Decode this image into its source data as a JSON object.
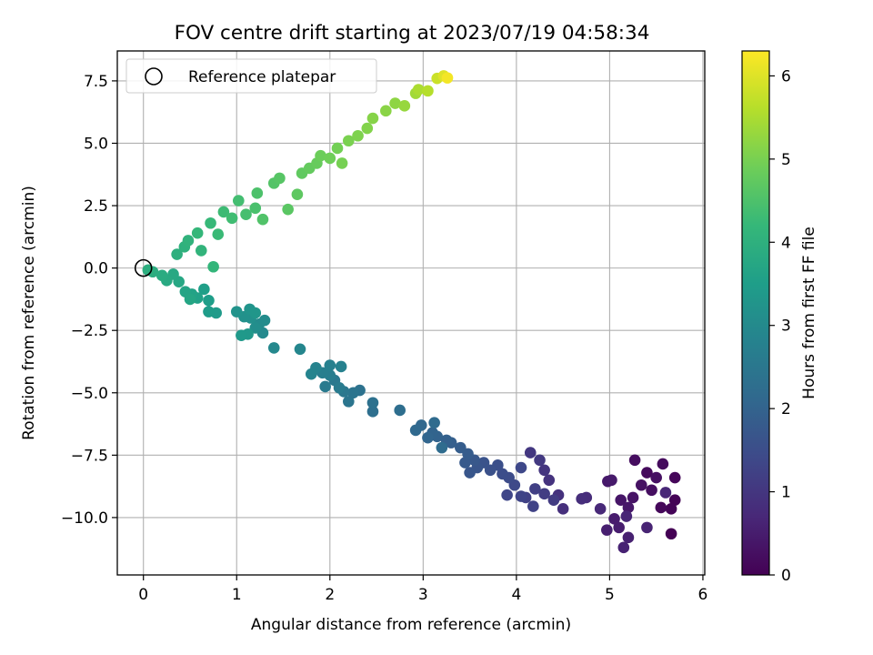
{
  "chart_data": {
    "type": "scatter",
    "title": "FOV centre drift starting at 2023/07/19 04:58:34",
    "xlabel": "Angular distance from reference (arcmin)",
    "ylabel": "Rotation from reference (arcmin)",
    "xlim": [
      -0.28,
      6.02
    ],
    "ylim": [
      -12.3,
      8.7
    ],
    "xticks": [
      0,
      1,
      2,
      3,
      4,
      5,
      6
    ],
    "yticks": [
      -10.0,
      -7.5,
      -5.0,
      -2.5,
      0.0,
      2.5,
      5.0,
      7.5
    ],
    "xtick_labels": [
      "0",
      "1",
      "2",
      "3",
      "4",
      "5",
      "6"
    ],
    "ytick_labels": [
      "−10.0",
      "−7.5",
      "−5.0",
      "−2.5",
      "0.0",
      "2.5",
      "5.0",
      "7.5"
    ],
    "grid": true,
    "legend": {
      "position": "top-left",
      "entries": [
        {
          "label": "Reference platepar",
          "marker": "open-circle"
        }
      ]
    },
    "reference_point": {
      "x": 0,
      "y": 0
    },
    "colorbar": {
      "label": "Hours from first FF file",
      "range": [
        0,
        6.3
      ],
      "ticks": [
        0,
        1,
        2,
        3,
        4,
        5,
        6
      ],
      "tick_labels": [
        "0",
        "1",
        "2",
        "3",
        "4",
        "5",
        "6"
      ],
      "colormap": "viridis"
    },
    "colormap_stops": [
      "#440154",
      "#482878",
      "#3e4989",
      "#31688e",
      "#26828e",
      "#1f9e89",
      "#35b779",
      "#6ece58",
      "#b5de2b",
      "#fde725"
    ],
    "points": [
      {
        "x": 5.66,
        "y": -10.65,
        "h": 0.0
      },
      {
        "x": 5.7,
        "y": -9.3,
        "h": 0.03
      },
      {
        "x": 5.66,
        "y": -9.65,
        "h": 0.06
      },
      {
        "x": 5.7,
        "y": -8.4,
        "h": 0.09
      },
      {
        "x": 5.55,
        "y": -9.6,
        "h": 0.12
      },
      {
        "x": 5.4,
        "y": -8.2,
        "h": 0.15
      },
      {
        "x": 5.57,
        "y": -7.85,
        "h": 0.18
      },
      {
        "x": 5.27,
        "y": -7.7,
        "h": 0.21
      },
      {
        "x": 5.45,
        "y": -8.9,
        "h": 0.24
      },
      {
        "x": 5.5,
        "y": -8.4,
        "h": 0.27
      },
      {
        "x": 5.34,
        "y": -8.7,
        "h": 0.3
      },
      {
        "x": 5.25,
        "y": -9.2,
        "h": 0.33
      },
      {
        "x": 5.12,
        "y": -9.3,
        "h": 0.36
      },
      {
        "x": 5.2,
        "y": -9.6,
        "h": 0.39
      },
      {
        "x": 4.98,
        "y": -8.55,
        "h": 0.42
      },
      {
        "x": 5.02,
        "y": -8.5,
        "h": 0.45
      },
      {
        "x": 5.05,
        "y": -10.05,
        "h": 0.48
      },
      {
        "x": 5.1,
        "y": -10.4,
        "h": 0.51
      },
      {
        "x": 4.97,
        "y": -10.5,
        "h": 0.54
      },
      {
        "x": 5.2,
        "y": -10.8,
        "h": 0.57
      },
      {
        "x": 5.15,
        "y": -11.2,
        "h": 0.6
      },
      {
        "x": 5.4,
        "y": -10.4,
        "h": 0.63
      },
      {
        "x": 5.18,
        "y": -9.95,
        "h": 0.66
      },
      {
        "x": 5.6,
        "y": -9.0,
        "h": 0.69
      },
      {
        "x": 4.9,
        "y": -9.65,
        "h": 0.72
      },
      {
        "x": 4.75,
        "y": -9.2,
        "h": 0.78
      },
      {
        "x": 4.7,
        "y": -9.25,
        "h": 0.82
      },
      {
        "x": 4.5,
        "y": -9.65,
        "h": 0.86
      },
      {
        "x": 4.45,
        "y": -9.1,
        "h": 0.9
      },
      {
        "x": 4.35,
        "y": -8.5,
        "h": 0.94
      },
      {
        "x": 4.3,
        "y": -8.1,
        "h": 0.98
      },
      {
        "x": 4.15,
        "y": -7.4,
        "h": 1.02
      },
      {
        "x": 4.25,
        "y": -7.7,
        "h": 1.06
      },
      {
        "x": 4.4,
        "y": -9.3,
        "h": 1.1
      },
      {
        "x": 4.3,
        "y": -9.05,
        "h": 1.14
      },
      {
        "x": 4.2,
        "y": -8.85,
        "h": 1.18
      },
      {
        "x": 4.1,
        "y": -9.2,
        "h": 1.22
      },
      {
        "x": 4.18,
        "y": -9.55,
        "h": 1.26
      },
      {
        "x": 4.05,
        "y": -9.15,
        "h": 1.3
      },
      {
        "x": 3.9,
        "y": -9.1,
        "h": 1.34
      },
      {
        "x": 4.05,
        "y": -8.0,
        "h": 1.38
      },
      {
        "x": 3.98,
        "y": -8.7,
        "h": 1.42
      },
      {
        "x": 3.92,
        "y": -8.4,
        "h": 1.46
      },
      {
        "x": 3.85,
        "y": -8.25,
        "h": 1.5
      },
      {
        "x": 3.8,
        "y": -7.9,
        "h": 1.54
      },
      {
        "x": 3.72,
        "y": -8.1,
        "h": 1.58
      },
      {
        "x": 3.65,
        "y": -7.8,
        "h": 1.62
      },
      {
        "x": 3.58,
        "y": -8.0,
        "h": 1.66
      },
      {
        "x": 3.5,
        "y": -8.2,
        "h": 1.7
      },
      {
        "x": 3.55,
        "y": -7.7,
        "h": 1.74
      },
      {
        "x": 3.45,
        "y": -7.8,
        "h": 1.78
      },
      {
        "x": 3.48,
        "y": -7.45,
        "h": 1.82
      },
      {
        "x": 3.4,
        "y": -7.2,
        "h": 1.86
      },
      {
        "x": 3.3,
        "y": -7.0,
        "h": 1.9
      },
      {
        "x": 3.25,
        "y": -6.9,
        "h": 1.94
      },
      {
        "x": 3.15,
        "y": -6.75,
        "h": 1.98
      },
      {
        "x": 3.1,
        "y": -6.6,
        "h": 2.02
      },
      {
        "x": 3.05,
        "y": -6.8,
        "h": 2.06
      },
      {
        "x": 2.98,
        "y": -6.3,
        "h": 2.1
      },
      {
        "x": 2.92,
        "y": -6.5,
        "h": 2.14
      },
      {
        "x": 3.12,
        "y": -6.2,
        "h": 2.18
      },
      {
        "x": 3.2,
        "y": -7.2,
        "h": 2.22
      },
      {
        "x": 2.75,
        "y": -5.7,
        "h": 2.26
      },
      {
        "x": 2.46,
        "y": -5.75,
        "h": 2.3
      },
      {
        "x": 2.46,
        "y": -5.4,
        "h": 2.34
      },
      {
        "x": 2.32,
        "y": -4.9,
        "h": 2.38
      },
      {
        "x": 2.25,
        "y": -5.0,
        "h": 2.42
      },
      {
        "x": 2.2,
        "y": -5.35,
        "h": 2.46
      },
      {
        "x": 2.15,
        "y": -4.95,
        "h": 2.5
      },
      {
        "x": 2.05,
        "y": -4.5,
        "h": 2.54
      },
      {
        "x": 1.95,
        "y": -4.75,
        "h": 2.58
      },
      {
        "x": 2.1,
        "y": -4.8,
        "h": 2.62
      },
      {
        "x": 2.0,
        "y": -4.3,
        "h": 2.66
      },
      {
        "x": 1.92,
        "y": -4.2,
        "h": 2.7
      },
      {
        "x": 2.0,
        "y": -3.9,
        "h": 2.74
      },
      {
        "x": 2.12,
        "y": -3.95,
        "h": 2.78
      },
      {
        "x": 1.85,
        "y": -4.0,
        "h": 2.82
      },
      {
        "x": 1.8,
        "y": -4.25,
        "h": 2.86
      },
      {
        "x": 1.68,
        "y": -3.25,
        "h": 2.9
      },
      {
        "x": 1.4,
        "y": -3.2,
        "h": 2.94
      },
      {
        "x": 1.28,
        "y": -2.6,
        "h": 2.98
      },
      {
        "x": 1.24,
        "y": -2.25,
        "h": 3.02
      },
      {
        "x": 1.3,
        "y": -2.1,
        "h": 3.06
      },
      {
        "x": 1.2,
        "y": -2.4,
        "h": 3.1
      },
      {
        "x": 1.15,
        "y": -2.0,
        "h": 3.14
      },
      {
        "x": 1.08,
        "y": -1.95,
        "h": 3.18
      },
      {
        "x": 1.0,
        "y": -1.75,
        "h": 3.22
      },
      {
        "x": 1.14,
        "y": -1.65,
        "h": 3.26
      },
      {
        "x": 1.2,
        "y": -1.8,
        "h": 3.3
      },
      {
        "x": 1.12,
        "y": -2.65,
        "h": 3.34
      },
      {
        "x": 1.05,
        "y": -2.7,
        "h": 3.38
      },
      {
        "x": 0.78,
        "y": -1.8,
        "h": 3.42
      },
      {
        "x": 0.7,
        "y": -1.75,
        "h": 3.46
      },
      {
        "x": 0.7,
        "y": -1.3,
        "h": 3.5
      },
      {
        "x": 0.65,
        "y": -0.85,
        "h": 3.54
      },
      {
        "x": 0.58,
        "y": -1.2,
        "h": 3.58
      },
      {
        "x": 0.52,
        "y": -1.05,
        "h": 3.62
      },
      {
        "x": 0.45,
        "y": -0.95,
        "h": 3.66
      },
      {
        "x": 0.5,
        "y": -1.25,
        "h": 3.7
      },
      {
        "x": 0.38,
        "y": -0.55,
        "h": 3.74
      },
      {
        "x": 0.32,
        "y": -0.25,
        "h": 3.78
      },
      {
        "x": 0.25,
        "y": -0.5,
        "h": 3.82
      },
      {
        "x": 0.2,
        "y": -0.3,
        "h": 3.86
      },
      {
        "x": 0.1,
        "y": -0.15,
        "h": 3.9
      },
      {
        "x": 0.05,
        "y": -0.08,
        "h": 3.94
      },
      {
        "x": 0.36,
        "y": 0.55,
        "h": 3.98
      },
      {
        "x": 0.44,
        "y": 0.85,
        "h": 4.02
      },
      {
        "x": 0.48,
        "y": 1.1,
        "h": 4.06
      },
      {
        "x": 0.62,
        "y": 0.7,
        "h": 4.1
      },
      {
        "x": 0.75,
        "y": 0.05,
        "h": 4.14
      },
      {
        "x": 0.58,
        "y": 1.4,
        "h": 4.18
      },
      {
        "x": 0.72,
        "y": 1.8,
        "h": 4.22
      },
      {
        "x": 0.8,
        "y": 1.35,
        "h": 4.26
      },
      {
        "x": 0.86,
        "y": 2.25,
        "h": 4.3
      },
      {
        "x": 0.95,
        "y": 2.0,
        "h": 4.34
      },
      {
        "x": 1.02,
        "y": 2.7,
        "h": 4.38
      },
      {
        "x": 1.1,
        "y": 2.15,
        "h": 4.42
      },
      {
        "x": 1.2,
        "y": 2.4,
        "h": 4.46
      },
      {
        "x": 1.22,
        "y": 3.0,
        "h": 4.5
      },
      {
        "x": 1.28,
        "y": 1.95,
        "h": 4.54
      },
      {
        "x": 1.4,
        "y": 3.4,
        "h": 4.58
      },
      {
        "x": 1.46,
        "y": 3.6,
        "h": 4.62
      },
      {
        "x": 1.55,
        "y": 2.35,
        "h": 4.66
      },
      {
        "x": 1.65,
        "y": 2.95,
        "h": 4.7
      },
      {
        "x": 1.7,
        "y": 3.8,
        "h": 4.74
      },
      {
        "x": 1.78,
        "y": 4.0,
        "h": 4.78
      },
      {
        "x": 1.86,
        "y": 4.2,
        "h": 4.82
      },
      {
        "x": 1.9,
        "y": 4.5,
        "h": 4.86
      },
      {
        "x": 2.0,
        "y": 4.4,
        "h": 4.9
      },
      {
        "x": 2.08,
        "y": 4.8,
        "h": 4.94
      },
      {
        "x": 2.13,
        "y": 4.2,
        "h": 4.98
      },
      {
        "x": 2.2,
        "y": 5.1,
        "h": 5.02
      },
      {
        "x": 2.3,
        "y": 5.3,
        "h": 5.06
      },
      {
        "x": 2.4,
        "y": 5.6,
        "h": 5.1
      },
      {
        "x": 2.46,
        "y": 6.0,
        "h": 5.14
      },
      {
        "x": 2.6,
        "y": 6.3,
        "h": 5.18
      },
      {
        "x": 2.7,
        "y": 6.6,
        "h": 5.22
      },
      {
        "x": 2.8,
        "y": 6.5,
        "h": 5.3
      },
      {
        "x": 2.92,
        "y": 7.0,
        "h": 5.4
      },
      {
        "x": 2.95,
        "y": 7.15,
        "h": 5.5
      },
      {
        "x": 3.05,
        "y": 7.1,
        "h": 5.6
      },
      {
        "x": 3.15,
        "y": 7.6,
        "h": 5.8
      },
      {
        "x": 3.22,
        "y": 7.7,
        "h": 6.0
      },
      {
        "x": 3.26,
        "y": 7.62,
        "h": 6.2
      }
    ]
  }
}
